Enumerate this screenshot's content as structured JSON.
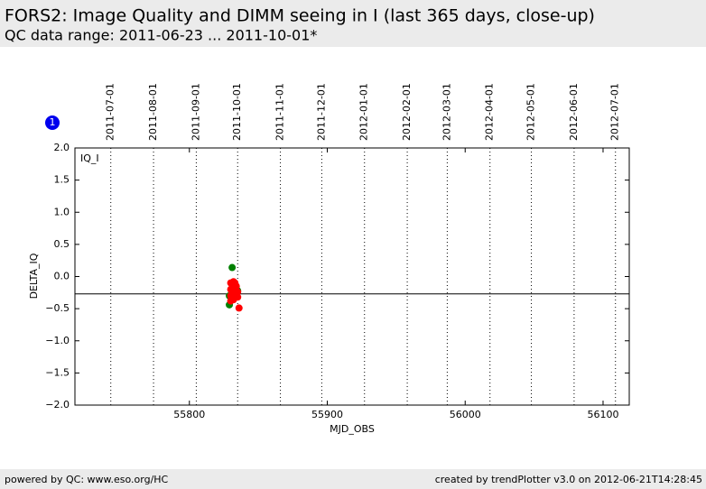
{
  "header": {
    "title": "FORS2: Image Quality and DIMM seeing in I (last 365 days, close-up)",
    "subtitle": "QC data range: 2011-06-23 ... 2011-10-01*"
  },
  "footer": {
    "left": "powered by QC: www.eso.org/HC",
    "right": "created by trendPlotter v3.0 on 2012-06-21T14:28:45"
  },
  "chart_data": {
    "type": "scatter",
    "x_label": "MJD_OBS",
    "y_label": "DELTA_IQ",
    "panel_label": "IQ_I",
    "badge": "1",
    "xlim": [
      55717,
      56119
    ],
    "xticks": [
      55800,
      55900,
      56000,
      56100
    ],
    "ylim": [
      -2,
      2
    ],
    "yticks": [
      {
        "value": -2,
        "label": "−2.0"
      },
      {
        "value": -1.5,
        "label": "−1.5"
      },
      {
        "value": -1,
        "label": "−1.0"
      },
      {
        "value": -0.5,
        "label": "−0.5"
      },
      {
        "value": 0,
        "label": "0.0"
      },
      {
        "value": 0.5,
        "label": "0.5"
      },
      {
        "value": 1,
        "label": "1.0"
      },
      {
        "value": 1.5,
        "label": "1.5"
      },
      {
        "value": 2,
        "label": "2.0"
      }
    ],
    "x2ticks": [
      {
        "value": 55743,
        "label": "2011-07-01"
      },
      {
        "value": 55774,
        "label": "2011-08-01"
      },
      {
        "value": 55805,
        "label": "2011-09-01"
      },
      {
        "value": 55835,
        "label": "2011-10-01"
      },
      {
        "value": 55866,
        "label": "2011-11-01"
      },
      {
        "value": 55896,
        "label": "2011-12-01"
      },
      {
        "value": 55927,
        "label": "2012-01-01"
      },
      {
        "value": 55958,
        "label": "2012-02-01"
      },
      {
        "value": 55987,
        "label": "2012-03-01"
      },
      {
        "value": 56018,
        "label": "2012-04-01"
      },
      {
        "value": 56048,
        "label": "2012-05-01"
      },
      {
        "value": 56079,
        "label": "2012-06-01"
      },
      {
        "value": 56109,
        "label": "2012-07-01"
      }
    ],
    "hline": -0.27,
    "series": [
      {
        "color": "#008000",
        "x": [
          55831,
          55829,
          55829,
          55835
        ],
        "values": [
          0.14,
          -0.44,
          -0.3,
          -0.22
        ]
      },
      {
        "color": "#ff0000",
        "x": [
          55830,
          55830,
          55830,
          55830,
          55831,
          55831,
          55831,
          55832,
          55832,
          55832,
          55832,
          55833,
          55833,
          55833,
          55834,
          55834,
          55835,
          55835,
          55836
        ],
        "values": [
          -0.1,
          -0.2,
          -0.3,
          -0.38,
          -0.12,
          -0.25,
          -0.33,
          -0.08,
          -0.18,
          -0.28,
          -0.36,
          -0.1,
          -0.22,
          -0.3,
          -0.15,
          -0.26,
          -0.24,
          -0.32,
          -0.49
        ]
      }
    ]
  }
}
